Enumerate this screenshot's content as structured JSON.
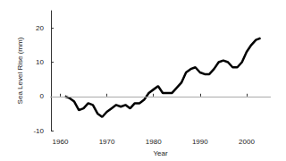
{
  "chart_data": {
    "type": "line",
    "x_label": "Year",
    "y_label": "Sea Level Rise (mm)",
    "x": [
      1961,
      1962,
      1963,
      1964,
      1965,
      1966,
      1967,
      1968,
      1969,
      1970,
      1971,
      1972,
      1973,
      1974,
      1975,
      1976,
      1977,
      1978,
      1979,
      1980,
      1981,
      1982,
      1983,
      1984,
      1985,
      1986,
      1987,
      1988,
      1989,
      1990,
      1991,
      1992,
      1993,
      1994,
      1995,
      1996,
      1997,
      1998,
      1999,
      2000,
      2001,
      2002,
      2003
    ],
    "values": [
      0,
      -0.5,
      -1.5,
      -4,
      -3.5,
      -2,
      -2.5,
      -5,
      -6,
      -4.5,
      -3.5,
      -2.5,
      -3,
      -2.5,
      -3.5,
      -2,
      -2,
      -1,
      1,
      2,
      3,
      1,
      1,
      1,
      2.5,
      4,
      7,
      8,
      8.5,
      7,
      6.5,
      6.5,
      8,
      10,
      10.5,
      10,
      8.5,
      8.5,
      10,
      13,
      15,
      16.5,
      17
    ],
    "color": "#000000",
    "xlim": [
      1958,
      2005
    ],
    "xticks": [
      1960,
      1970,
      1980,
      1990,
      2000
    ],
    "ylim": [
      -10,
      25
    ],
    "yticks": [
      -10,
      0,
      10,
      20
    ],
    "grid": false
  }
}
